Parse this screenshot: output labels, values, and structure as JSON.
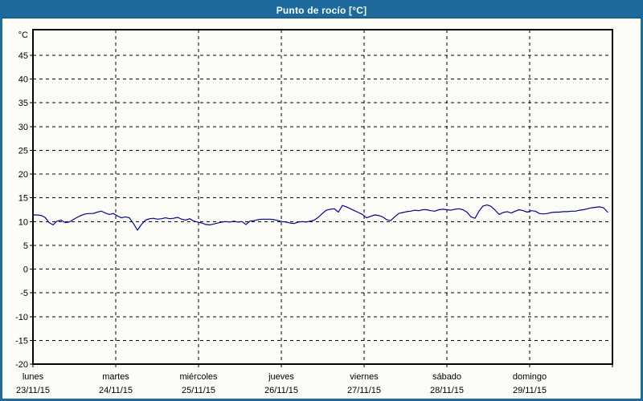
{
  "window": {
    "title": "Punto de rocío [°C]"
  },
  "colors": {
    "titlebar_bg": "#1d6b9e",
    "titlebar_text": "#ffffff",
    "border": "#1d6b9e",
    "page_bg": "#fdfdf8",
    "frame": "#000000",
    "grid": "#000000",
    "line": "#0000b8"
  },
  "chart_data": {
    "type": "line",
    "title": "Punto de rocío [°C]",
    "ylabel": "°C",
    "xlabel": "",
    "grid": "dashed",
    "legend": "none",
    "y_axis": {
      "unit_label": "°C",
      "tick_min": -20,
      "tick_max": 45,
      "tick_step": 5,
      "ylim": [
        -20,
        50.4
      ]
    },
    "x_axis": {
      "total_days": 7,
      "days": [
        {
          "name": "lunes",
          "date": "23/11/15"
        },
        {
          "name": "martes",
          "date": "24/11/15"
        },
        {
          "name": "miércoles",
          "date": "25/11/15"
        },
        {
          "name": "jueves",
          "date": "26/11/15"
        },
        {
          "name": "viernes",
          "date": "27/11/15"
        },
        {
          "name": "sábado",
          "date": "28/11/15"
        },
        {
          "name": "domingo",
          "date": "29/11/15"
        }
      ]
    },
    "series": [
      {
        "name": "Punto de rocío",
        "color": "#0000b8",
        "x_start_day": 0,
        "x_step_day": 0.048544,
        "values": [
          11.4,
          11.4,
          11.3,
          10.9,
          9.8,
          9.3,
          10.1,
          10.3,
          9.8,
          9.9,
          10.4,
          10.9,
          11.3,
          11.6,
          11.7,
          11.7,
          12.0,
          12.2,
          11.8,
          11.5,
          11.7,
          11.2,
          10.8,
          11.0,
          10.8,
          9.6,
          8.2,
          9.4,
          10.3,
          10.6,
          10.7,
          10.5,
          10.6,
          10.8,
          10.6,
          10.7,
          10.9,
          10.5,
          10.3,
          10.6,
          10.1,
          9.9,
          9.7,
          9.4,
          9.3,
          9.5,
          9.7,
          9.9,
          10.0,
          9.9,
          10.1,
          9.9,
          10.0,
          9.4,
          10.1,
          10.2,
          10.4,
          10.5,
          10.5,
          10.5,
          10.4,
          10.2,
          10.0,
          9.9,
          9.7,
          9.6,
          9.9,
          10.0,
          9.9,
          10.1,
          10.3,
          10.9,
          11.7,
          12.4,
          12.6,
          12.7,
          12.0,
          13.4,
          13.1,
          12.7,
          12.3,
          11.9,
          11.5,
          10.8,
          11.1,
          11.4,
          11.3,
          11.0,
          10.4,
          10.2,
          11.0,
          11.7,
          11.9,
          12.1,
          12.2,
          12.4,
          12.3,
          12.5,
          12.5,
          12.3,
          12.2,
          12.5,
          12.6,
          12.5,
          12.4,
          12.6,
          12.7,
          12.5,
          12.0,
          11.0,
          10.7,
          12.2,
          13.3,
          13.5,
          13.2,
          12.4,
          11.5,
          11.9,
          12.1,
          11.8,
          12.2,
          12.5,
          12.3,
          12.0,
          12.3,
          12.2,
          11.7,
          11.6,
          11.7,
          11.9,
          12.0,
          12.0,
          12.1,
          12.1,
          12.2,
          12.2,
          12.4,
          12.5,
          12.7,
          12.9,
          13.0,
          13.1,
          12.9,
          12.0
        ]
      }
    ]
  }
}
